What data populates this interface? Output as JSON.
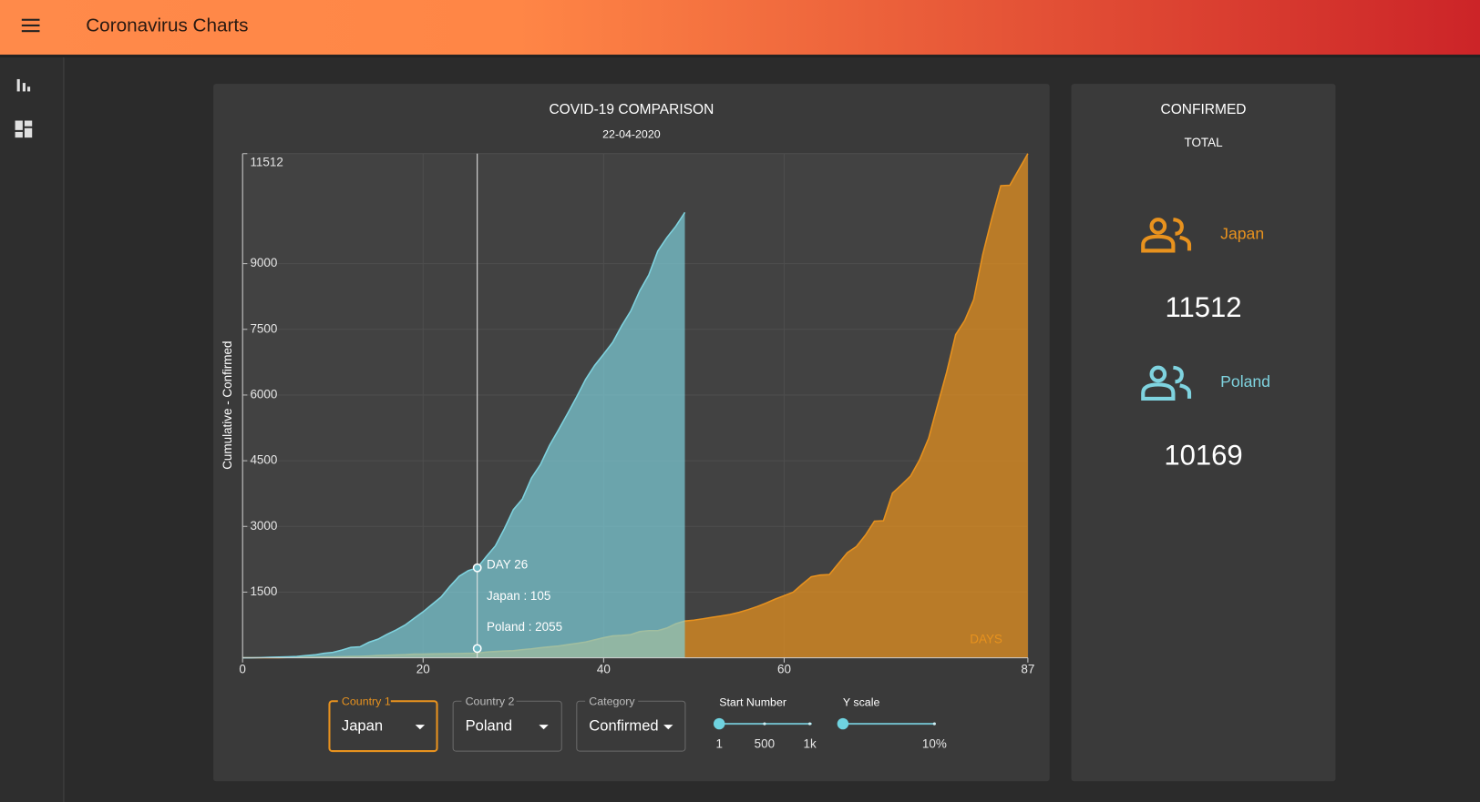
{
  "header": {
    "title": "Coronavirus Charts"
  },
  "chart_data": {
    "type": "area",
    "title": "COVID-19 COMPARISON",
    "subtitle": "22-04-2020",
    "x_label": "DAYS",
    "y_label": "Cumulative - Confirmed",
    "x": [
      0,
      1,
      2,
      3,
      4,
      5,
      6,
      7,
      8,
      9,
      10,
      11,
      12,
      13,
      14,
      15,
      16,
      17,
      18,
      19,
      20,
      21,
      22,
      23,
      24,
      25,
      26,
      27,
      28,
      29,
      30,
      31,
      32,
      33,
      34,
      35,
      36,
      37,
      38,
      39,
      40,
      41,
      42,
      43,
      44,
      45,
      46,
      47,
      48,
      49,
      50,
      51,
      52,
      53,
      54,
      55,
      56,
      57,
      58,
      59,
      60,
      61,
      62,
      63,
      64,
      65,
      66,
      67,
      68,
      69,
      70,
      71,
      72,
      73,
      74,
      75,
      76,
      77,
      78,
      79,
      80,
      81,
      82,
      83,
      84,
      85,
      86,
      87
    ],
    "xlim": [
      0,
      87
    ],
    "xticks": [
      0,
      20,
      40,
      60,
      87
    ],
    "ylim": [
      0,
      11512
    ],
    "yticks": [
      1500,
      3000,
      4500,
      6000,
      7500,
      9000,
      11512
    ],
    "grid": true,
    "series": [
      {
        "name": "Japan",
        "color": "#e8921e",
        "values": [
          2,
          2,
          2,
          4,
          4,
          7,
          11,
          12,
          14,
          16,
          20,
          25,
          29,
          33,
          41,
          53,
          59,
          66,
          73,
          84,
          86,
          89,
          93,
          96,
          99,
          102,
          105,
          132,
          144,
          156,
          162,
          187,
          205,
          230,
          250,
          270,
          300,
          330,
          360,
          410,
          460,
          500,
          510,
          530,
          600,
          620,
          620,
          680,
          780,
          840,
          860,
          890,
          925,
          955,
          990,
          1040,
          1100,
          1170,
          1250,
          1340,
          1420,
          1500,
          1680,
          1850,
          1890,
          1900,
          2150,
          2400,
          2540,
          2800,
          3120,
          3130,
          3760,
          3950,
          4150,
          4520,
          5010,
          5770,
          6520,
          7380,
          7700,
          8180,
          9210,
          10030,
          10780,
          10790,
          11150,
          11512
        ]
      },
      {
        "name": "Poland",
        "color": "#7fd3df",
        "values": [
          1,
          1,
          5,
          11,
          17,
          22,
          31,
          51,
          68,
          104,
          125,
          177,
          238,
          251,
          355,
          425,
          536,
          634,
          749,
          901,
          1051,
          1221,
          1389,
          1638,
          1862,
          1990,
          2055,
          2311,
          2554,
          2946,
          3383,
          3627,
          4102,
          4413,
          4848,
          5205,
          5575,
          5955,
          6356,
          6674,
          6934,
          7202,
          7582,
          7918,
          8379,
          8742,
          9287,
          9593,
          9856,
          10169,
          null,
          null,
          null,
          null,
          null,
          null,
          null,
          null,
          null,
          null,
          null,
          null,
          null,
          null,
          null,
          null,
          null,
          null,
          null,
          null,
          null,
          null,
          null,
          null,
          null,
          null,
          null,
          null,
          null,
          null,
          null,
          null,
          null,
          null,
          null,
          null,
          null,
          null
        ]
      }
    ],
    "tooltip": {
      "x": 26,
      "title": "DAY 26",
      "lines": [
        "Japan : 105",
        "Poland : 2055"
      ]
    }
  },
  "summary": {
    "title": "CONFIRMED",
    "subtitle": "TOTAL",
    "totals": [
      "11512",
      "10169"
    ]
  },
  "controls": {
    "country1": {
      "label": "Country 1",
      "value": "Japan"
    },
    "country2": {
      "label": "Country 2",
      "value": "Poland"
    },
    "category": {
      "label": "Category",
      "value": "Confirmed"
    },
    "start_number": {
      "label": "Start Number",
      "ticks": [
        "1",
        "500",
        "1k"
      ]
    },
    "y_scale": {
      "label": "Y scale",
      "ticks": [
        "10%"
      ]
    }
  }
}
